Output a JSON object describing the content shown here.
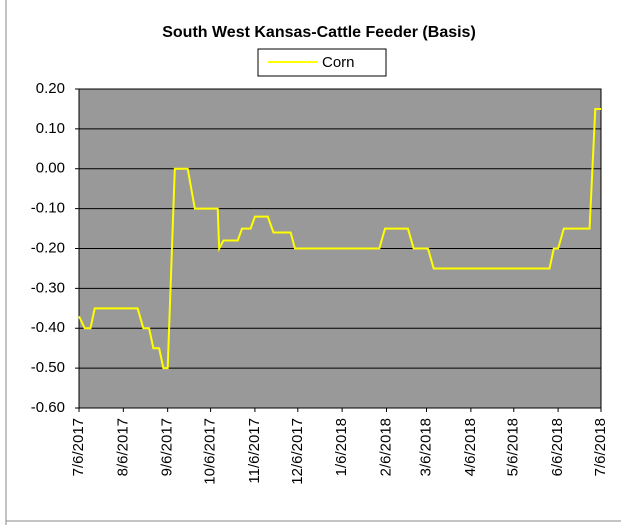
{
  "chart_data": {
    "type": "line",
    "title": "South West Kansas-Cattle Feeder (Basis)",
    "x": [
      "7/6/2017",
      "7/10/2017",
      "7/14/2017",
      "7/17/2017",
      "8/16/2017",
      "8/20/2017",
      "8/24/2017",
      "8/27/2017",
      "8/31/2017",
      "9/3/2017",
      "9/6/2017",
      "9/11/2017",
      "9/20/2017",
      "9/25/2017",
      "10/11/2017",
      "10/12/2017",
      "10/15/2017",
      "10/25/2017",
      "10/28/2017",
      "11/3/2017",
      "11/6/2017",
      "11/15/2017",
      "11/19/2017",
      "12/1/2017",
      "12/4/2017",
      "2/1/2018",
      "2/5/2018",
      "2/21/2018",
      "2/25/2018",
      "3/7/2018",
      "3/11/2018",
      "5/31/2018",
      "6/3/2018",
      "6/6/2018",
      "6/10/2018",
      "6/28/2018",
      "7/2/2018",
      "7/6/2018"
    ],
    "series": [
      {
        "name": "Corn",
        "color": "#ffff00",
        "values": [
          -0.37,
          -0.4,
          -0.4,
          -0.35,
          -0.35,
          -0.4,
          -0.4,
          -0.45,
          -0.45,
          -0.5,
          -0.5,
          0.0,
          0.0,
          -0.1,
          -0.1,
          -0.2,
          -0.18,
          -0.18,
          -0.15,
          -0.15,
          -0.12,
          -0.12,
          -0.16,
          -0.16,
          -0.2,
          -0.2,
          -0.15,
          -0.15,
          -0.2,
          -0.2,
          -0.25,
          -0.25,
          -0.2,
          -0.2,
          -0.15,
          -0.15,
          0.15,
          0.15
        ]
      }
    ],
    "xlim": [
      "7/6/2017",
      "7/6/2018"
    ],
    "xticks": [
      "7/6/2017",
      "8/6/2017",
      "9/6/2017",
      "10/6/2017",
      "11/6/2017",
      "12/6/2017",
      "1/6/2018",
      "2/6/2018",
      "3/6/2018",
      "4/6/2018",
      "5/6/2018",
      "6/6/2018",
      "7/6/2018"
    ],
    "ylim": [
      -0.6,
      0.2
    ],
    "yticks": [
      {
        "value": 0.2,
        "label": "0.20"
      },
      {
        "value": 0.1,
        "label": "0.10"
      },
      {
        "value": 0,
        "label": "0.00"
      },
      {
        "value": -0.1,
        "label": "-0.10"
      },
      {
        "value": -0.2,
        "label": "-0.20"
      },
      {
        "value": -0.3,
        "label": "-0.30"
      },
      {
        "value": -0.4,
        "label": "-0.40"
      },
      {
        "value": -0.5,
        "label": "-0.50"
      },
      {
        "value": -0.6,
        "label": "-0.60"
      }
    ],
    "grid": true,
    "plot_background": "#999999"
  }
}
